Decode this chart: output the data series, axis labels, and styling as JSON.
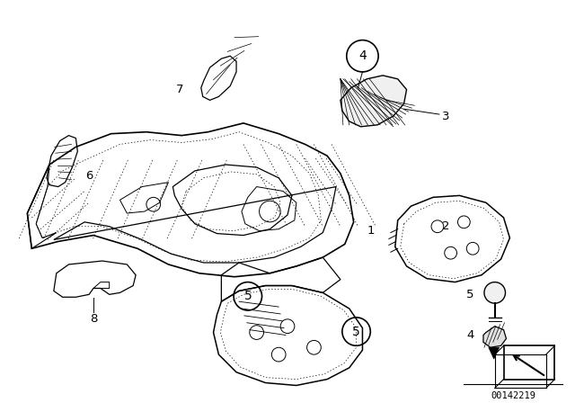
{
  "background_color": "#ffffff",
  "line_color": "#000000",
  "figure_width": 6.4,
  "figure_height": 4.48,
  "dpi": 100,
  "catalog_number": "00142219"
}
